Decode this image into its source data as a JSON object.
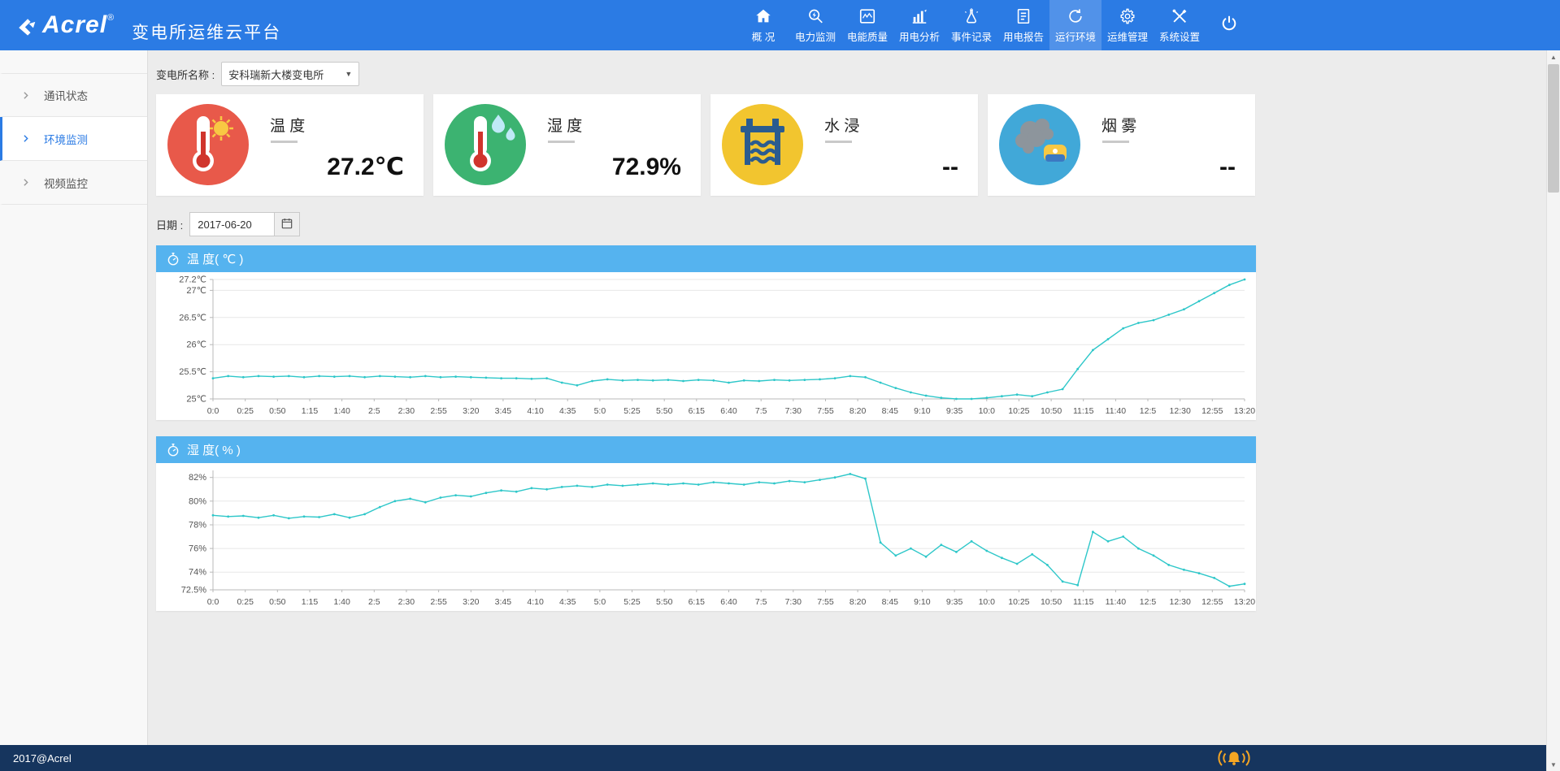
{
  "header": {
    "logo_text": "Acrel",
    "logo_reg": "®",
    "title": "变电所运维云平台",
    "nav": [
      {
        "label": "概 况",
        "icon": "overview-icon",
        "active": false
      },
      {
        "label": "电力监测",
        "icon": "power-monitoring-icon",
        "active": false
      },
      {
        "label": "电能质量",
        "icon": "power-quality-icon",
        "active": false
      },
      {
        "label": "用电分析",
        "icon": "usage-analysis-icon",
        "active": false
      },
      {
        "label": "事件记录",
        "icon": "event-log-icon",
        "active": false
      },
      {
        "label": "用电报告",
        "icon": "report-icon",
        "active": false
      },
      {
        "label": "运行环境",
        "icon": "environment-icon",
        "active": true
      },
      {
        "label": "运维管理",
        "icon": "operations-icon",
        "active": false
      },
      {
        "label": "系统设置",
        "icon": "settings-icon",
        "active": false
      }
    ]
  },
  "sidebar": {
    "items": [
      {
        "label": "通讯状态",
        "active": false
      },
      {
        "label": "环境监测",
        "active": true
      },
      {
        "label": "视频监控",
        "active": false
      }
    ]
  },
  "toolbar": {
    "station_label": "变电所名称 :",
    "station_value": "安科瑞新大楼变电所",
    "date_label": "日期 :",
    "date_value": "2017-06-20"
  },
  "cards": [
    {
      "name": "temperature-card",
      "title": "温 度",
      "value": "27.2℃",
      "icon": "thermometer-sun-icon",
      "color": "#e8594a"
    },
    {
      "name": "humidity-card",
      "title": "湿 度",
      "value": "72.9%",
      "icon": "thermometer-drops-icon",
      "color": "#3cb371"
    },
    {
      "name": "water-leak-card",
      "title": "水 浸",
      "value": "--",
      "icon": "flood-icon",
      "color": "#f2c52f"
    },
    {
      "name": "smoke-card",
      "title": "烟 雾",
      "value": "--",
      "icon": "smoke-icon",
      "color": "#41a8d8"
    }
  ],
  "footer": {
    "copyright": "2017@Acrel"
  },
  "chart_data": [
    {
      "type": "line",
      "title": "温 度( ℃ )",
      "ylabel": "℃",
      "ylim": [
        25,
        27.2
      ],
      "y_ticks": [
        25,
        25.5,
        26,
        26.5,
        27,
        27.2
      ],
      "y_tick_labels": [
        "25℃",
        "25.5℃",
        "26℃",
        "26.5℃",
        "27℃",
        "27.2℃"
      ],
      "x_tick_labels": [
        "0:0",
        "0:25",
        "0:50",
        "1:15",
        "1:40",
        "2:5",
        "2:30",
        "2:55",
        "3:20",
        "3:45",
        "4:10",
        "4:35",
        "5:0",
        "5:25",
        "5:50",
        "6:15",
        "6:40",
        "7:5",
        "7:30",
        "7:55",
        "8:20",
        "8:45",
        "9:10",
        "9:35",
        "10:0",
        "10:25",
        "10:50",
        "11:15",
        "11:40",
        "12:5",
        "12:30",
        "12:55",
        "13:20"
      ],
      "grid": true,
      "line_color": "#2ec7c9",
      "series": [
        {
          "name": "温度",
          "values": [
            25.38,
            25.42,
            25.4,
            25.42,
            25.41,
            25.42,
            25.4,
            25.42,
            25.41,
            25.42,
            25.4,
            25.42,
            25.41,
            25.4,
            25.42,
            25.4,
            25.41,
            25.4,
            25.39,
            25.38,
            25.38,
            25.37,
            25.38,
            25.3,
            25.25,
            25.33,
            25.36,
            25.34,
            25.35,
            25.34,
            25.35,
            25.33,
            25.35,
            25.34,
            25.3,
            25.34,
            25.33,
            25.35,
            25.34,
            25.35,
            25.36,
            25.38,
            25.42,
            25.4,
            25.3,
            25.2,
            25.12,
            25.06,
            25.02,
            25.0,
            25.0,
            25.02,
            25.05,
            25.08,
            25.05,
            25.12,
            25.18,
            25.55,
            25.9,
            26.1,
            26.3,
            26.4,
            26.45,
            26.55,
            26.65,
            26.8,
            26.95,
            27.1,
            27.2
          ]
        }
      ]
    },
    {
      "type": "line",
      "title": "湿 度( % )",
      "ylabel": "%",
      "ylim": [
        72.5,
        82.6
      ],
      "y_ticks": [
        72.5,
        74,
        76,
        78,
        80,
        82
      ],
      "y_tick_labels": [
        "72.5%",
        "74%",
        "76%",
        "78%",
        "80%",
        "82%"
      ],
      "x_tick_labels": [
        "0:0",
        "0:25",
        "0:50",
        "1:15",
        "1:40",
        "2:5",
        "2:30",
        "2:55",
        "3:20",
        "3:45",
        "4:10",
        "4:35",
        "5:0",
        "5:25",
        "5:50",
        "6:15",
        "6:40",
        "7:5",
        "7:30",
        "7:55",
        "8:20",
        "8:45",
        "9:10",
        "9:35",
        "10:0",
        "10:25",
        "10:50",
        "11:15",
        "11:40",
        "12:5",
        "12:30",
        "12:55",
        "13:20"
      ],
      "grid": true,
      "line_color": "#2ec7c9",
      "series": [
        {
          "name": "湿度",
          "values": [
            78.8,
            78.7,
            78.75,
            78.6,
            78.8,
            78.55,
            78.7,
            78.65,
            78.9,
            78.6,
            78.9,
            79.5,
            80.0,
            80.2,
            79.9,
            80.3,
            80.5,
            80.4,
            80.7,
            80.9,
            80.8,
            81.1,
            81.0,
            81.2,
            81.3,
            81.2,
            81.4,
            81.3,
            81.4,
            81.5,
            81.4,
            81.5,
            81.4,
            81.6,
            81.5,
            81.4,
            81.6,
            81.5,
            81.7,
            81.6,
            81.8,
            82.0,
            82.3,
            81.9,
            76.5,
            75.4,
            76.0,
            75.3,
            76.3,
            75.7,
            76.6,
            75.8,
            75.2,
            74.7,
            75.5,
            74.6,
            73.2,
            72.9,
            77.4,
            76.6,
            77.0,
            76.0,
            75.4,
            74.6,
            74.2,
            73.9,
            73.5,
            72.8,
            73.0
          ]
        }
      ]
    }
  ]
}
